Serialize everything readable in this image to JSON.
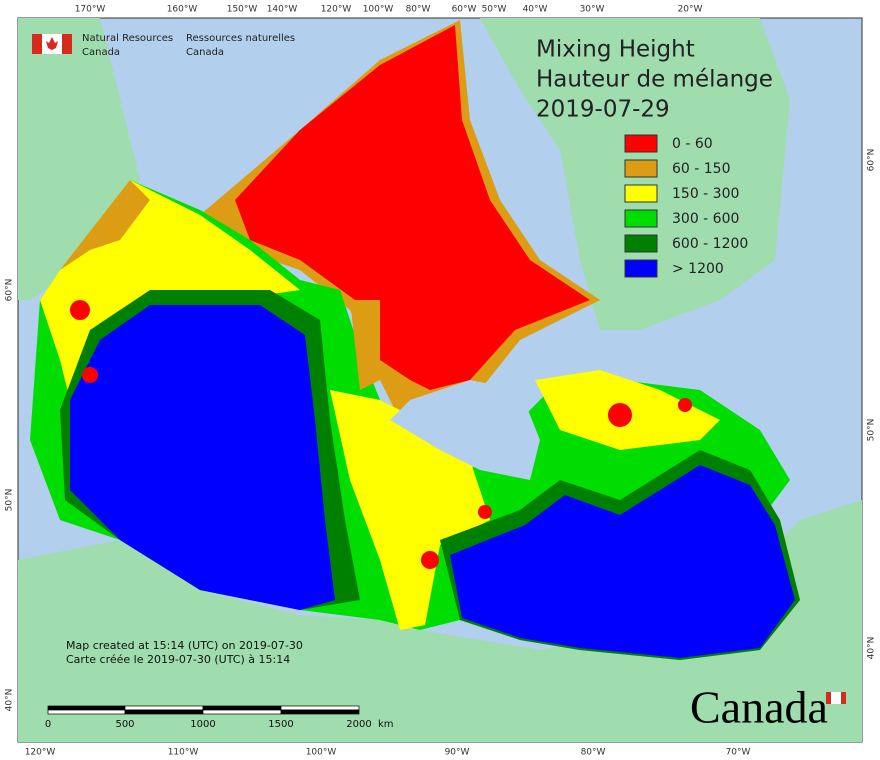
{
  "agency": {
    "en": [
      "Natural Resources",
      "Canada"
    ],
    "fr": [
      "Ressources naturelles",
      "Canada"
    ]
  },
  "title": [
    "Mixing Height",
    "Hauteur de mélange",
    "2019-07-29"
  ],
  "legend": [
    {
      "label": "0 - 60",
      "color": "#ff0000"
    },
    {
      "label": "60 - 150",
      "color": "#dc9c14"
    },
    {
      "label": "150 - 300",
      "color": "#ffff00"
    },
    {
      "label": "300 - 600",
      "color": "#00dd00"
    },
    {
      "label": "600 - 1200",
      "color": "#008000"
    },
    {
      "label": "> 1200",
      "color": "#0000ff"
    }
  ],
  "graticule": {
    "top": [
      "170°W",
      "160°W",
      "150°W",
      "140°W",
      "120°W",
      "100°W",
      "80°W",
      "60°W",
      "50°W",
      "40°W",
      "30°W",
      "20°W"
    ],
    "bottom": [
      "120°W",
      "110°W",
      "100°W",
      "90°W",
      "80°W",
      "70°W"
    ],
    "left": [
      "60°N",
      "50°N",
      "40°N"
    ],
    "right": [
      "60°N",
      "50°N",
      "40°N"
    ]
  },
  "credits": [
    "Map created at 15:14 (UTC) on 2019-07-30",
    "Carte créée le 2019-07-30 (UTC) à 15:14"
  ],
  "scale_bar": {
    "labels": [
      "0",
      "500",
      "1000",
      "1500",
      "2000"
    ],
    "unit": "km"
  },
  "wordmark": "Canada"
}
